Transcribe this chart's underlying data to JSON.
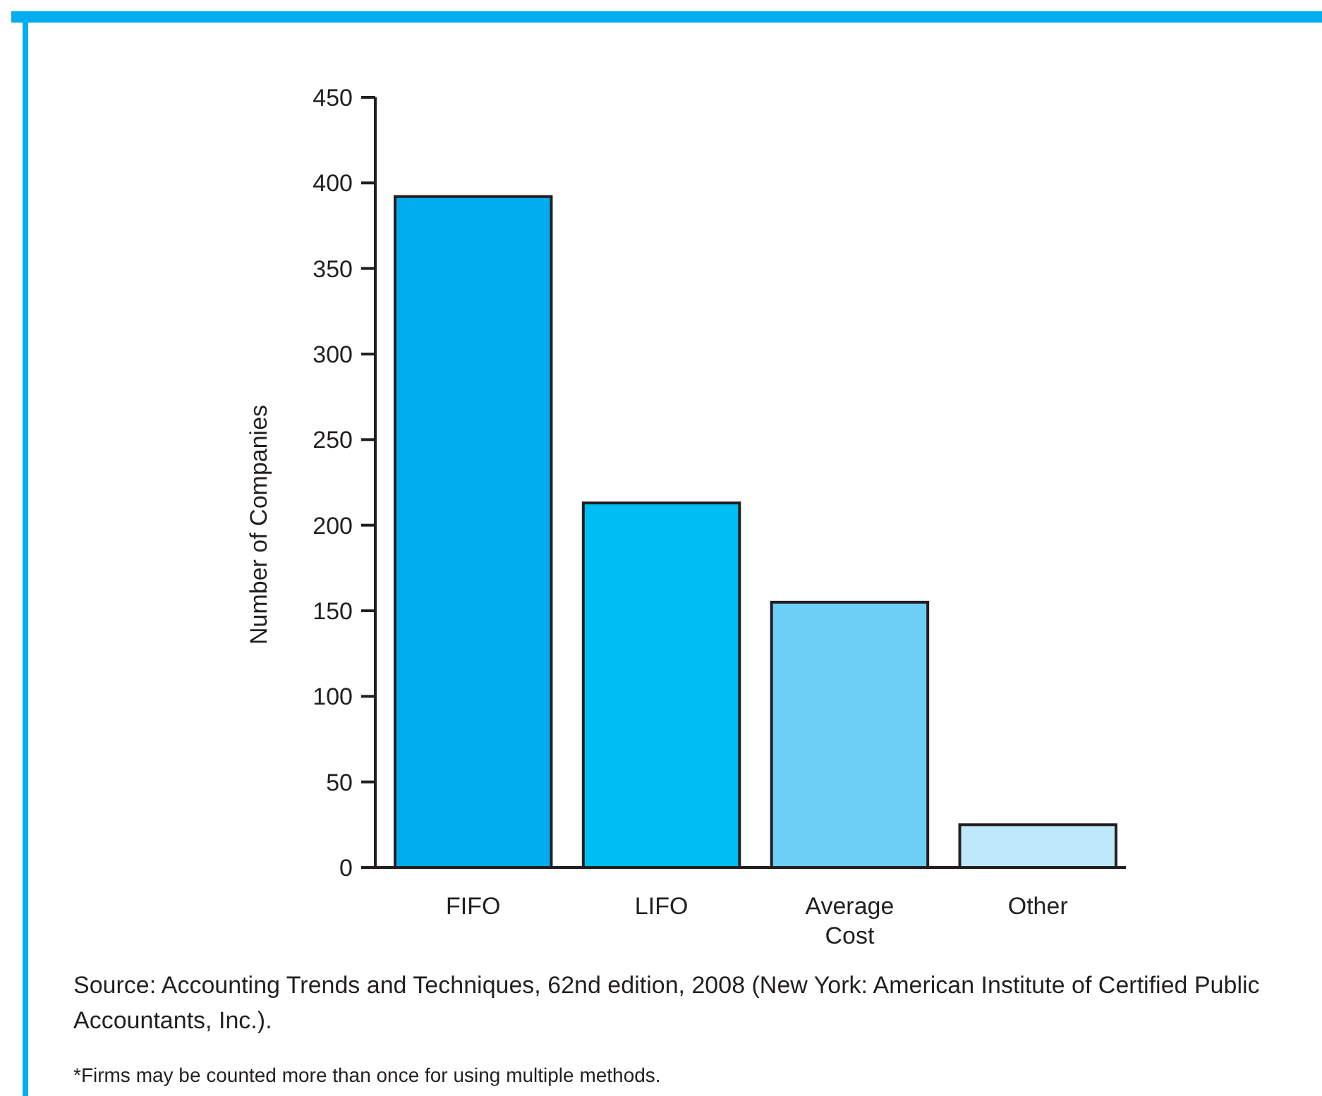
{
  "chart_data": {
    "type": "bar",
    "ylabel": "Number of Companies",
    "categories": [
      "FIFO",
      "LIFO",
      "Average Cost",
      "Other"
    ],
    "values": [
      392,
      213,
      155,
      25
    ],
    "colors": [
      "#00aeef",
      "#00bdf2",
      "#6dcff6",
      "#bde9fb"
    ],
    "ylim": [
      0,
      450
    ],
    "yticks": [
      0,
      50,
      100,
      150,
      200,
      250,
      300,
      350,
      400,
      450
    ],
    "grid": false,
    "annotations": [
      "Source: Accounting Trends and Techniques, 62nd edition, 2008 (New York: American Institute of Certified Public Accountants, Inc.).",
      "*Firms may be counted more than once for using multiple methods."
    ]
  }
}
